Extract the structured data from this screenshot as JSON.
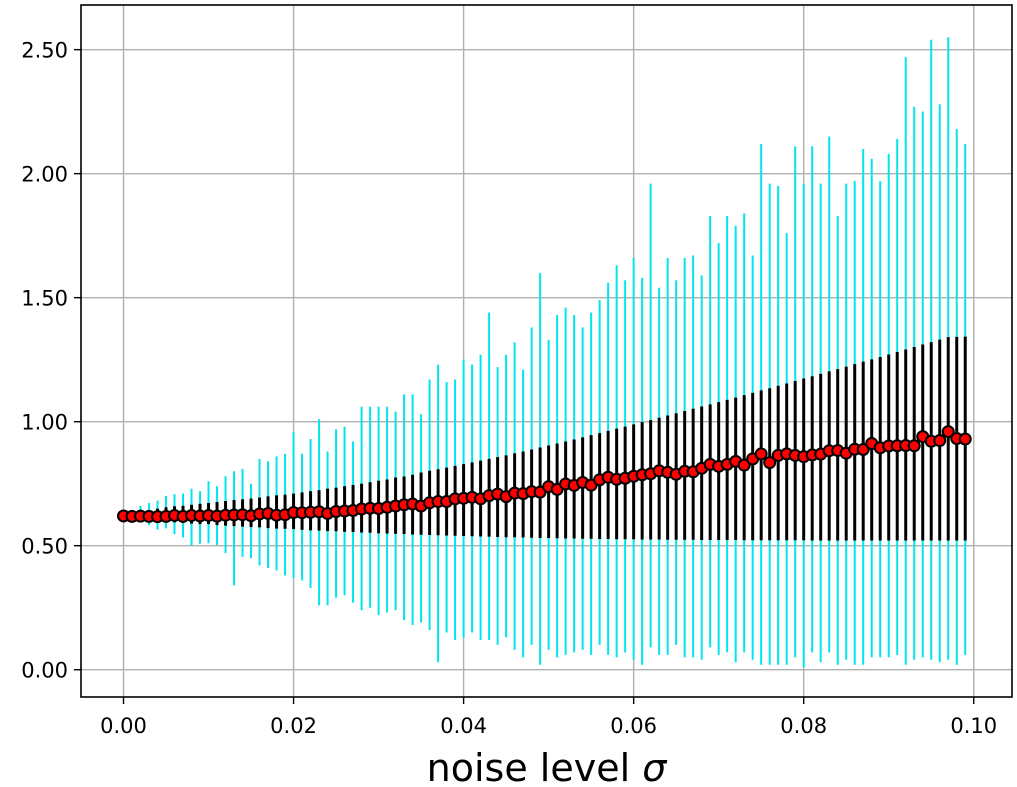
{
  "chart_data": {
    "type": "scatter",
    "title": "",
    "xlabel": "noise level",
    "xlabel_symbol": "σ",
    "ylabel": "",
    "xlim": [
      -0.005,
      0.1045
    ],
    "ylim": [
      -0.11,
      2.68
    ],
    "grid": true,
    "x_ticks": [
      0.0,
      0.02,
      0.04,
      0.06,
      0.08,
      0.1
    ],
    "x_tick_labels": [
      "0.00",
      "0.02",
      "0.04",
      "0.06",
      "0.08",
      "0.10"
    ],
    "y_ticks": [
      0.0,
      0.5,
      1.0,
      1.5,
      2.0,
      2.5
    ],
    "y_tick_labels": [
      "0.00",
      "0.50",
      "1.00",
      "1.50",
      "2.00",
      "2.50"
    ],
    "colors": {
      "mean_marker": "#ff0000",
      "marker_edge": "#000000",
      "std_bar": "#000000",
      "range_bar": "#00e5ee",
      "grid": "#b0b0b0"
    },
    "series": [
      {
        "x": [
          0.0,
          0.001,
          0.002,
          0.003,
          0.004,
          0.005,
          0.006,
          0.007,
          0.008,
          0.009,
          0.01,
          0.011,
          0.012,
          0.013,
          0.014,
          0.015,
          0.016,
          0.017,
          0.018,
          0.019,
          0.02,
          0.021,
          0.022,
          0.023,
          0.024,
          0.025,
          0.026,
          0.027,
          0.028,
          0.029,
          0.03,
          0.031,
          0.032,
          0.033,
          0.034,
          0.035,
          0.036,
          0.037,
          0.038,
          0.039,
          0.04,
          0.041,
          0.042,
          0.043,
          0.044,
          0.045,
          0.046,
          0.047,
          0.048,
          0.049,
          0.05,
          0.051,
          0.052,
          0.053,
          0.054,
          0.055,
          0.056,
          0.057,
          0.058,
          0.059,
          0.06,
          0.061,
          0.062,
          0.063,
          0.064,
          0.065,
          0.066,
          0.067,
          0.068,
          0.069,
          0.07,
          0.071,
          0.072,
          0.073,
          0.074,
          0.075,
          0.076,
          0.077,
          0.078,
          0.079,
          0.08,
          0.081,
          0.082,
          0.083,
          0.084,
          0.085,
          0.086,
          0.087,
          0.088,
          0.089,
          0.09,
          0.091,
          0.092,
          0.093,
          0.094,
          0.095,
          0.096,
          0.097,
          0.098,
          0.099
        ],
        "mean": [
          0.62,
          0.618,
          0.619,
          0.618,
          0.617,
          0.618,
          0.622,
          0.618,
          0.622,
          0.62,
          0.622,
          0.619,
          0.623,
          0.624,
          0.625,
          0.621,
          0.628,
          0.63,
          0.623,
          0.625,
          0.634,
          0.633,
          0.635,
          0.637,
          0.63,
          0.638,
          0.64,
          0.642,
          0.648,
          0.651,
          0.65,
          0.655,
          0.66,
          0.665,
          0.668,
          0.66,
          0.673,
          0.678,
          0.678,
          0.689,
          0.691,
          0.695,
          0.689,
          0.702,
          0.708,
          0.698,
          0.712,
          0.71,
          0.718,
          0.716,
          0.738,
          0.727,
          0.749,
          0.743,
          0.755,
          0.744,
          0.766,
          0.776,
          0.768,
          0.772,
          0.78,
          0.786,
          0.79,
          0.802,
          0.796,
          0.788,
          0.8,
          0.798,
          0.812,
          0.828,
          0.82,
          0.828,
          0.84,
          0.825,
          0.85,
          0.87,
          0.835,
          0.864,
          0.87,
          0.864,
          0.859,
          0.866,
          0.869,
          0.883,
          0.884,
          0.873,
          0.889,
          0.888,
          0.912,
          0.895,
          0.902,
          0.903,
          0.904,
          0.903,
          0.94,
          0.921,
          0.924,
          0.96,
          0.932,
          0.93
        ],
        "std_low": [
          0.62,
          0.607,
          0.601,
          0.599,
          0.599,
          0.595,
          0.594,
          0.592,
          0.589,
          0.587,
          0.587,
          0.583,
          0.581,
          0.579,
          0.577,
          0.575,
          0.574,
          0.571,
          0.569,
          0.568,
          0.567,
          0.564,
          0.562,
          0.561,
          0.559,
          0.558,
          0.556,
          0.555,
          0.553,
          0.552,
          0.55,
          0.549,
          0.548,
          0.547,
          0.545,
          0.544,
          0.543,
          0.542,
          0.541,
          0.54,
          0.539,
          0.538,
          0.537,
          0.536,
          0.535,
          0.534,
          0.534,
          0.533,
          0.532,
          0.531,
          0.531,
          0.53,
          0.529,
          0.529,
          0.528,
          0.528,
          0.527,
          0.527,
          0.526,
          0.526,
          0.526,
          0.525,
          0.525,
          0.525,
          0.524,
          0.524,
          0.524,
          0.524,
          0.523,
          0.523,
          0.523,
          0.523,
          0.523,
          0.522,
          0.522,
          0.522,
          0.522,
          0.522,
          0.522,
          0.522,
          0.522,
          0.521,
          0.521,
          0.521,
          0.521,
          0.521,
          0.521,
          0.521,
          0.521,
          0.521,
          0.521,
          0.521,
          0.521,
          0.521,
          0.521,
          0.521,
          0.521,
          0.521,
          0.521,
          0.521
        ],
        "std_high": [
          0.62,
          0.633,
          0.641,
          0.642,
          0.649,
          0.655,
          0.659,
          0.661,
          0.665,
          0.669,
          0.672,
          0.676,
          0.68,
          0.684,
          0.687,
          0.69,
          0.694,
          0.699,
          0.703,
          0.706,
          0.71,
          0.715,
          0.72,
          0.724,
          0.73,
          0.734,
          0.74,
          0.745,
          0.75,
          0.756,
          0.762,
          0.767,
          0.775,
          0.779,
          0.786,
          0.795,
          0.802,
          0.808,
          0.815,
          0.822,
          0.829,
          0.836,
          0.843,
          0.85,
          0.857,
          0.864,
          0.872,
          0.88,
          0.888,
          0.896,
          0.904,
          0.912,
          0.92,
          0.928,
          0.937,
          0.946,
          0.954,
          0.963,
          0.972,
          0.98,
          0.989,
          0.998,
          1.007,
          1.016,
          1.025,
          1.034,
          1.043,
          1.052,
          1.061,
          1.07,
          1.079,
          1.088,
          1.097,
          1.107,
          1.116,
          1.126,
          1.135,
          1.145,
          1.154,
          1.164,
          1.174,
          1.183,
          1.193,
          1.203,
          1.212,
          1.222,
          1.232,
          1.242,
          1.251,
          1.261,
          1.271,
          1.281,
          1.291,
          1.301,
          1.311,
          1.321,
          1.331,
          1.341,
          1.342,
          1.343
        ],
        "range_low": [
          0.62,
          0.609,
          0.596,
          0.583,
          0.565,
          0.57,
          0.547,
          0.533,
          0.5,
          0.508,
          0.51,
          0.503,
          0.47,
          0.34,
          0.455,
          0.45,
          0.42,
          0.41,
          0.4,
          0.38,
          0.37,
          0.36,
          0.33,
          0.26,
          0.26,
          0.29,
          0.3,
          0.27,
          0.24,
          0.25,
          0.22,
          0.23,
          0.24,
          0.2,
          0.18,
          0.19,
          0.16,
          0.03,
          0.15,
          0.12,
          0.13,
          0.15,
          0.12,
          0.12,
          0.1,
          0.13,
          0.08,
          0.05,
          0.1,
          0.02,
          0.08,
          0.05,
          0.06,
          0.07,
          0.08,
          0.06,
          0.1,
          0.06,
          0.05,
          0.07,
          0.04,
          0.02,
          0.09,
          0.06,
          0.06,
          0.1,
          0.05,
          0.05,
          0.04,
          0.09,
          0.06,
          0.07,
          0.03,
          0.07,
          0.04,
          0.02,
          0.02,
          0.02,
          0.02,
          0.05,
          0.01,
          0.07,
          0.03,
          0.07,
          0.02,
          0.04,
          0.02,
          0.02,
          0.05,
          0.05,
          0.05,
          0.06,
          0.02,
          0.04,
          0.05,
          0.04,
          0.03,
          0.04,
          0.02,
          0.06
        ],
        "range_high": [
          0.62,
          0.636,
          0.66,
          0.672,
          0.682,
          0.7,
          0.708,
          0.71,
          0.73,
          0.72,
          0.76,
          0.74,
          0.78,
          0.8,
          0.81,
          0.75,
          0.85,
          0.84,
          0.86,
          0.87,
          0.96,
          0.87,
          0.93,
          1.01,
          0.88,
          0.97,
          0.98,
          0.92,
          1.06,
          1.06,
          1.06,
          1.06,
          1.04,
          1.11,
          1.11,
          1.03,
          1.17,
          1.23,
          1.16,
          1.17,
          1.25,
          1.23,
          1.27,
          1.44,
          1.22,
          1.27,
          1.32,
          1.21,
          1.38,
          1.6,
          1.33,
          1.43,
          1.46,
          1.43,
          1.38,
          1.44,
          1.49,
          1.56,
          1.63,
          1.57,
          1.66,
          1.58,
          1.96,
          1.54,
          1.66,
          1.57,
          1.66,
          1.67,
          1.59,
          1.83,
          1.72,
          1.83,
          1.79,
          1.84,
          1.67,
          2.12,
          1.96,
          1.95,
          1.76,
          2.11,
          1.96,
          2.11,
          1.96,
          2.15,
          1.83,
          1.96,
          1.97,
          2.1,
          2.06,
          1.97,
          2.08,
          2.14,
          2.47,
          2.27,
          2.25,
          2.54,
          2.28,
          2.55,
          2.18,
          2.12
        ]
      }
    ]
  }
}
